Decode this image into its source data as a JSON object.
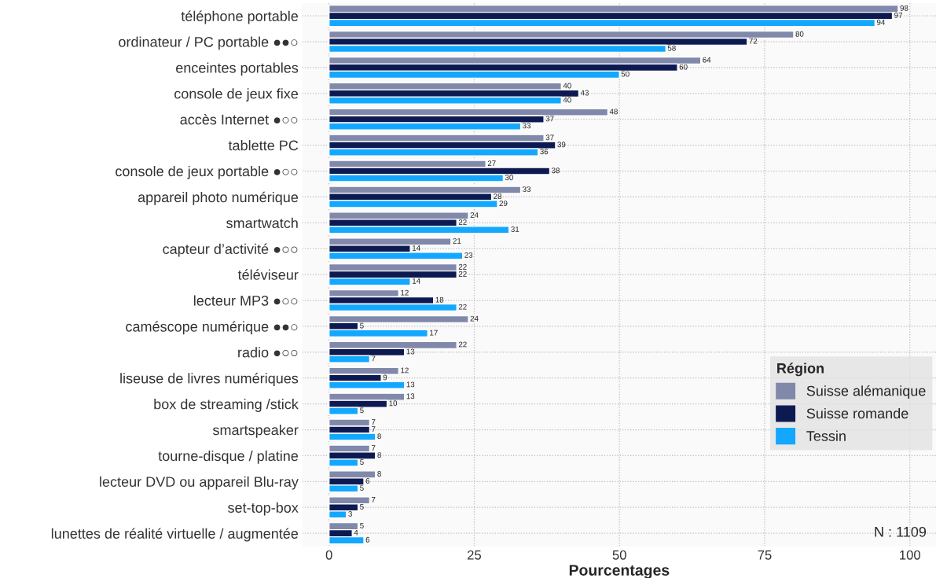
{
  "chart_data": {
    "type": "bar",
    "orientation": "horizontal",
    "xlabel": "Pourcentages",
    "legend_title": "Région",
    "legend": "bottom right",
    "grid": true,
    "data_labels": true,
    "categories": [
      "téléphone portable",
      "ordinateur / PC portable ●●○",
      "enceintes portables",
      "console de jeux fixe",
      "accès Internet ●○○",
      "tablette PC",
      "console de jeux portable ●○○",
      "appareil photo numérique",
      "smartwatch",
      "capteur d’activité ●○○",
      "téléviseur",
      "lecteur MP3 ●○○",
      "caméscope numérique ●●○",
      "radio ●○○",
      "liseuse de livres numériques",
      "box de streaming /stick",
      "smartspeaker",
      "tourne-disque / platine",
      "lecteur DVD ou appareil Blu-ray",
      "set-top-box",
      "lunettes de réalité virtuelle / augmentée"
    ],
    "series": [
      {
        "name": "Suisse alémanique",
        "color": "#8189ab",
        "values": [
          98,
          80,
          64,
          40,
          48,
          37,
          27,
          33,
          24,
          21,
          22,
          12,
          24,
          22,
          12,
          13,
          7,
          7,
          8,
          7,
          5
        ]
      },
      {
        "name": "Suisse romande",
        "color": "#0d1a52",
        "values": [
          97,
          72,
          60,
          43,
          37,
          39,
          38,
          28,
          22,
          14,
          22,
          18,
          5,
          13,
          9,
          10,
          7,
          8,
          6,
          5,
          4
        ]
      },
      {
        "name": "Tessin",
        "color": "#13a8fe",
        "values": [
          94,
          58,
          50,
          40,
          33,
          36,
          30,
          29,
          31,
          23,
          14,
          22,
          17,
          7,
          13,
          5,
          8,
          5,
          5,
          3,
          6
        ]
      }
    ],
    "xlim": [
      -4.6,
      104.5
    ],
    "xticks": [
      0,
      25,
      50,
      75,
      100
    ],
    "annotations": [
      "N : 1109"
    ]
  }
}
